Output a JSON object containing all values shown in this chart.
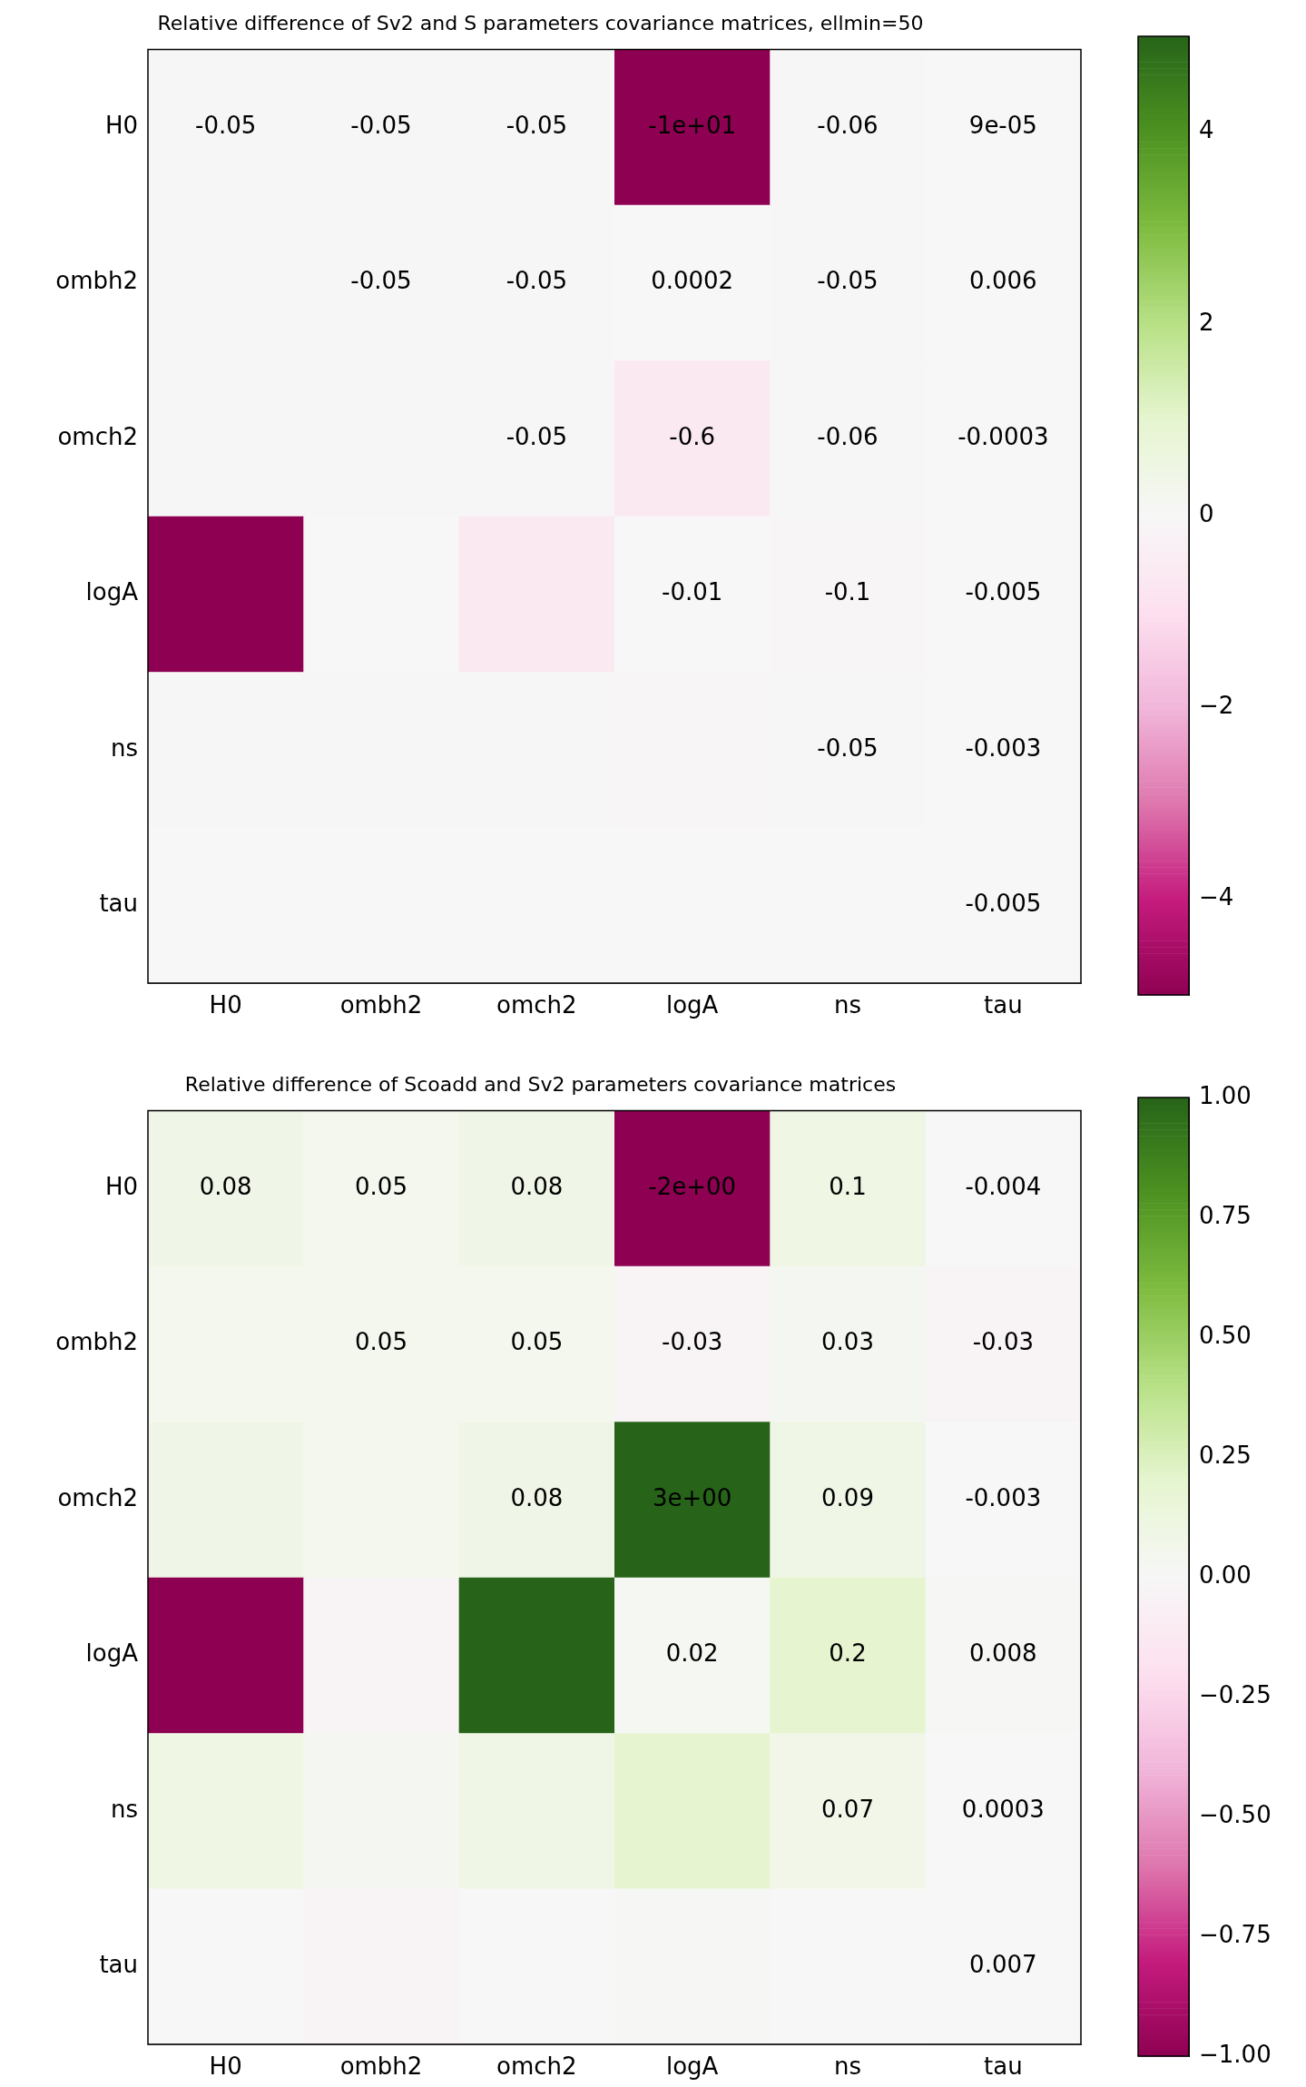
{
  "chart_data": [
    {
      "type": "heatmap",
      "title": "Relative difference of Sv2 and S parameters covariance matrices, ellmin=50",
      "categories": [
        "H0",
        "ombh2",
        "omch2",
        "logA",
        "ns",
        "tau"
      ],
      "y_categories": [
        "H0",
        "ombh2",
        "omch2",
        "logA",
        "ns",
        "tau"
      ],
      "cells": [
        [
          -0.05,
          -0.05,
          -0.05,
          -10,
          -0.06,
          9e-05
        ],
        [
          -0.05,
          -0.05,
          -0.05,
          0.0002,
          -0.05,
          0.006
        ],
        [
          -0.05,
          -0.05,
          -0.05,
          -0.6,
          -0.06,
          -0.0003
        ],
        [
          -10,
          0.0002,
          -0.6,
          -0.01,
          -0.1,
          -0.005
        ],
        [
          -0.06,
          -0.05,
          -0.06,
          -0.1,
          -0.05,
          -0.003
        ],
        [
          9e-05,
          0.006,
          -0.0003,
          -0.005,
          -0.003,
          -0.005
        ]
      ],
      "cell_labels": [
        [
          "-0.05",
          "-0.05",
          "-0.05",
          "-1e+01",
          "-0.06",
          "9e-05"
        ],
        [
          null,
          "-0.05",
          "-0.05",
          "0.0002",
          "-0.05",
          "0.006"
        ],
        [
          null,
          null,
          "-0.05",
          "-0.6",
          "-0.06",
          "-0.0003"
        ],
        [
          null,
          null,
          null,
          "-0.01",
          "-0.1",
          "-0.005"
        ],
        [
          null,
          null,
          null,
          null,
          "-0.05",
          "-0.003"
        ],
        [
          null,
          null,
          null,
          null,
          null,
          "-0.005"
        ]
      ],
      "clim": [
        -5,
        5
      ],
      "cticks": [
        {
          "value": -4,
          "label": "−4"
        },
        {
          "value": -2,
          "label": "−2"
        },
        0,
        2,
        4
      ]
    },
    {
      "type": "heatmap",
      "title": "Relative difference of Scoadd and Sv2 parameters covariance matrices",
      "categories": [
        "H0",
        "ombh2",
        "omch2",
        "logA",
        "ns",
        "tau"
      ],
      "y_categories": [
        "H0",
        "ombh2",
        "omch2",
        "logA",
        "ns",
        "tau"
      ],
      "cells": [
        [
          0.08,
          0.05,
          0.08,
          -2,
          0.1,
          -0.004
        ],
        [
          0.05,
          0.05,
          0.05,
          -0.03,
          0.03,
          -0.03
        ],
        [
          0.08,
          0.05,
          0.08,
          3,
          0.09,
          -0.003
        ],
        [
          -2,
          -0.03,
          3,
          0.02,
          0.2,
          0.008
        ],
        [
          0.1,
          0.03,
          0.09,
          0.2,
          0.07,
          0.0003
        ],
        [
          -0.004,
          -0.03,
          -0.003,
          0.008,
          0.0003,
          0.007
        ]
      ],
      "cell_labels": [
        [
          "0.08",
          "0.05",
          "0.08",
          "-2e+00",
          "0.1",
          "-0.004"
        ],
        [
          null,
          "0.05",
          "0.05",
          "-0.03",
          "0.03",
          "-0.03"
        ],
        [
          null,
          null,
          "0.08",
          "3e+00",
          "0.09",
          "-0.003"
        ],
        [
          null,
          null,
          null,
          "0.02",
          "0.2",
          "0.008"
        ],
        [
          null,
          null,
          null,
          null,
          "0.07",
          "0.0003"
        ],
        [
          null,
          null,
          null,
          null,
          null,
          "0.007"
        ]
      ],
      "clim": [
        -1,
        1
      ],
      "cticks": [
        {
          "value": -1,
          "label": "−1.00"
        },
        {
          "value": -0.75,
          "label": "−0.75"
        },
        {
          "value": -0.5,
          "label": "−0.50"
        },
        {
          "value": -0.25,
          "label": "−0.25"
        },
        {
          "value": 0,
          "label": "0.00"
        },
        {
          "value": 0.25,
          "label": "0.25"
        },
        {
          "value": 0.5,
          "label": "0.50"
        },
        {
          "value": 0.75,
          "label": "0.75"
        },
        {
          "value": 1,
          "label": "1.00"
        }
      ]
    }
  ]
}
